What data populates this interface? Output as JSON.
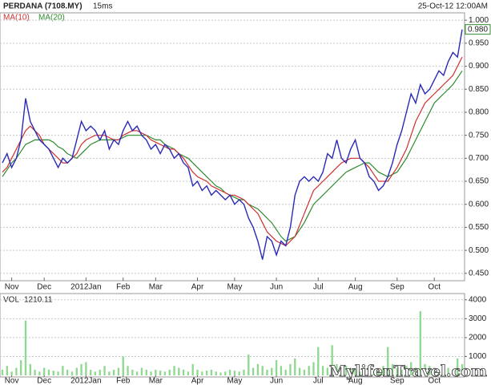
{
  "chart_data": {
    "type": "line",
    "title": "PERDANA (7108.MY)",
    "subtitle": "15ms",
    "date_label": "25-Oct-12 12:00AM",
    "categories": [
      null,
      null,
      "Nov",
      null,
      null,
      null,
      null,
      null,
      null,
      "Dec",
      null,
      null,
      null,
      null,
      null,
      null,
      null,
      null,
      "2012Jan",
      null,
      null,
      null,
      null,
      null,
      null,
      null,
      "Feb",
      null,
      null,
      null,
      null,
      null,
      null,
      "Mar",
      null,
      null,
      null,
      null,
      null,
      null,
      null,
      null,
      "Apr",
      null,
      null,
      null,
      null,
      null,
      null,
      null,
      "May",
      null,
      null,
      null,
      null,
      null,
      null,
      null,
      null,
      "Jun",
      null,
      null,
      null,
      null,
      null,
      null,
      null,
      null,
      "Jul",
      null,
      null,
      null,
      null,
      null,
      null,
      null,
      "Aug",
      null,
      null,
      null,
      null,
      null,
      null,
      null,
      null,
      "Sep",
      null,
      null,
      null,
      null,
      null,
      null,
      null,
      "Oct",
      null,
      null,
      null,
      null,
      null,
      null
    ],
    "series": [
      {
        "color": "#2a2ab8",
        "values": [
          0.69,
          0.71,
          0.68,
          0.7,
          0.74,
          0.83,
          0.78,
          0.76,
          0.74,
          0.73,
          0.72,
          0.7,
          0.68,
          0.7,
          0.69,
          0.7,
          0.74,
          0.78,
          0.76,
          0.77,
          0.76,
          0.74,
          0.76,
          0.72,
          0.74,
          0.73,
          0.76,
          0.78,
          0.76,
          0.77,
          0.75,
          0.74,
          0.72,
          0.73,
          0.71,
          0.73,
          0.72,
          0.7,
          0.71,
          0.69,
          0.68,
          0.64,
          0.65,
          0.63,
          0.64,
          0.62,
          0.63,
          0.62,
          0.61,
          0.62,
          0.6,
          0.61,
          0.6,
          0.57,
          0.55,
          0.52,
          0.48,
          0.53,
          0.52,
          0.49,
          0.52,
          0.51,
          0.55,
          0.62,
          0.65,
          0.66,
          0.65,
          0.66,
          0.65,
          0.67,
          0.71,
          0.7,
          0.74,
          0.7,
          0.69,
          0.72,
          0.74,
          0.7,
          0.69,
          0.66,
          0.65,
          0.63,
          0.64,
          0.66,
          0.69,
          0.73,
          0.76,
          0.8,
          0.84,
          0.82,
          0.86,
          0.84,
          0.85,
          0.87,
          0.89,
          0.88,
          0.91,
          0.93,
          0.92,
          0.98
        ]
      },
      {
        "name": "MA(10)",
        "color": "#d03030",
        "values": [
          0.67,
          0.68,
          0.7,
          0.72,
          0.74,
          0.76,
          0.77,
          0.76,
          0.75,
          0.73,
          0.72,
          0.71,
          0.7,
          0.69,
          0.69,
          0.7,
          0.71,
          0.73,
          0.74,
          0.745,
          0.75,
          0.75,
          0.75,
          0.745,
          0.74,
          0.74,
          0.75,
          0.755,
          0.76,
          0.76,
          0.755,
          0.75,
          0.74,
          0.735,
          0.73,
          0.725,
          0.72,
          0.72,
          0.71,
          0.7,
          0.685,
          0.67,
          0.66,
          0.655,
          0.65,
          0.64,
          0.635,
          0.63,
          0.625,
          0.62,
          0.62,
          0.615,
          0.61,
          0.6,
          0.59,
          0.58,
          0.56,
          0.54,
          0.53,
          0.52,
          0.515,
          0.51,
          0.52,
          0.53,
          0.555,
          0.58,
          0.605,
          0.63,
          0.64,
          0.65,
          0.66,
          0.67,
          0.68,
          0.69,
          0.695,
          0.7,
          0.7,
          0.7,
          0.69,
          0.68,
          0.665,
          0.65,
          0.65,
          0.65,
          0.665,
          0.68,
          0.7,
          0.72,
          0.75,
          0.78,
          0.8,
          0.82,
          0.83,
          0.84,
          0.85,
          0.86,
          0.87,
          0.88,
          0.9,
          0.92
        ]
      },
      {
        "name": "MA(20)",
        "color": "#2e8b2e",
        "values": [
          0.66,
          0.675,
          0.69,
          0.7,
          0.715,
          0.73,
          0.735,
          0.74,
          0.74,
          0.74,
          0.74,
          0.735,
          0.725,
          0.72,
          0.71,
          0.705,
          0.7,
          0.71,
          0.72,
          0.73,
          0.735,
          0.74,
          0.74,
          0.74,
          0.74,
          0.74,
          0.745,
          0.75,
          0.75,
          0.75,
          0.75,
          0.75,
          0.745,
          0.74,
          0.74,
          0.73,
          0.725,
          0.72,
          0.71,
          0.705,
          0.7,
          0.69,
          0.68,
          0.67,
          0.66,
          0.65,
          0.64,
          0.635,
          0.625,
          0.62,
          0.615,
          0.61,
          0.61,
          0.6,
          0.595,
          0.59,
          0.58,
          0.57,
          0.56,
          0.545,
          0.53,
          0.52,
          0.525,
          0.53,
          0.545,
          0.56,
          0.58,
          0.6,
          0.61,
          0.62,
          0.63,
          0.64,
          0.65,
          0.66,
          0.67,
          0.675,
          0.68,
          0.685,
          0.69,
          0.69,
          0.68,
          0.67,
          0.665,
          0.66,
          0.665,
          0.67,
          0.685,
          0.7,
          0.72,
          0.74,
          0.76,
          0.78,
          0.8,
          0.82,
          0.83,
          0.84,
          0.85,
          0.86,
          0.875,
          0.89
        ]
      }
    ],
    "ylim": [
      0.434,
      1.016
    ],
    "yticks": [
      {
        "value": 0.45,
        "label": "0.450"
      },
      {
        "value": 0.5,
        "label": "0.500"
      },
      {
        "value": 0.55,
        "label": "0.550"
      },
      {
        "value": 0.6,
        "label": "0.600"
      },
      {
        "value": 0.65,
        "label": "0.650"
      },
      {
        "value": 0.7,
        "label": "0.700"
      },
      {
        "value": 0.75,
        "label": "0.750"
      },
      {
        "value": 0.8,
        "label": "0.800"
      },
      {
        "value": 0.85,
        "label": "0.850"
      },
      {
        "value": 0.9,
        "label": "0.900"
      },
      {
        "value": 0.95,
        "label": "0.950"
      },
      {
        "value": 1.0,
        "label": "1.000"
      }
    ],
    "grid": true,
    "last_value": {
      "value": 0.98,
      "label": "0.980",
      "color": "#2e8b2e"
    },
    "volume": {
      "type": "bar",
      "name": "VOL",
      "value_label": "1210.11",
      "color": "#8fd88f",
      "values": [
        300,
        500,
        200,
        400,
        800,
        2900,
        600,
        300,
        200,
        400,
        300,
        250,
        200,
        500,
        300,
        200,
        400,
        600,
        700,
        300,
        200,
        300,
        500,
        200,
        300,
        400,
        1000,
        500,
        300,
        200,
        400,
        300,
        200,
        300,
        250,
        200,
        300,
        500,
        400,
        300,
        200,
        600,
        300,
        200,
        250,
        300,
        200,
        150,
        200,
        300,
        250,
        200,
        300,
        1100,
        400,
        600,
        500,
        300,
        400,
        800,
        500,
        300,
        600,
        900,
        400,
        300,
        500,
        700,
        1500,
        500,
        400,
        1600,
        600,
        300,
        500,
        400,
        300,
        200,
        400,
        300,
        250,
        300,
        500,
        1500,
        600,
        400,
        300,
        500,
        700,
        400,
        3400,
        600,
        500,
        400,
        300,
        500,
        400,
        300,
        900,
        600
      ],
      "ylim": [
        0,
        4330
      ],
      "yticks": [
        1000,
        2000,
        3000,
        4000
      ]
    },
    "watermark": "MylifenTravel.com"
  }
}
